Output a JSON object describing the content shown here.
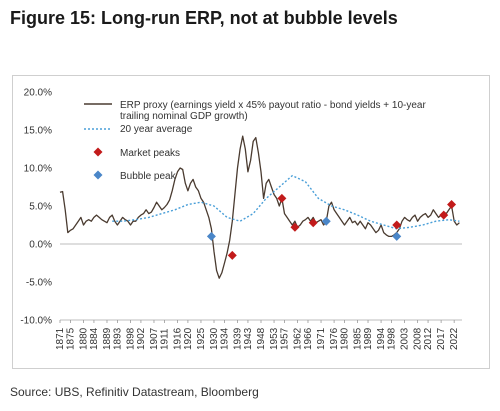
{
  "figure": {
    "title": "Figure 15: Long-run ERP, not at bubble levels",
    "source": "Source: UBS, Refinitiv Datastream, Bloomberg"
  },
  "chart_data": {
    "type": "line",
    "ylim": [
      -10,
      20
    ],
    "xlim": [
      1871,
      2025
    ],
    "y_ticks": [
      20,
      15,
      10,
      5,
      0,
      -5,
      -10
    ],
    "y_tick_labels": [
      "20.0%",
      "15.0%",
      "10.0%",
      "5.0%",
      "0.0%",
      "-5.0%",
      "-10.0%"
    ],
    "x_ticks": [
      "1871",
      "1875",
      "1880",
      "1884",
      "1889",
      "1893",
      "1898",
      "1902",
      "1907",
      "1911",
      "1916",
      "1920",
      "1925",
      "1930",
      "1934",
      "1939",
      "1943",
      "1948",
      "1953",
      "1957",
      "1962",
      "1966",
      "1971",
      "1976",
      "1980",
      "1985",
      "1989",
      "1994",
      "1998",
      "2003",
      "2008",
      "2012",
      "2017",
      "2022"
    ],
    "grid": false,
    "legend_position": "top",
    "series": [
      {
        "name": "ERP proxy (earnings yield x 45% payout ratio - bond yields + 10-year trailing nominal GDP growth)",
        "style": "line",
        "color": "#4a3b30",
        "x": [
          1871,
          1872,
          1873,
          1874,
          1875,
          1876,
          1877,
          1878,
          1879,
          1880,
          1881,
          1882,
          1883,
          1884,
          1885,
          1886,
          1887,
          1888,
          1889,
          1890,
          1891,
          1892,
          1893,
          1894,
          1895,
          1896,
          1897,
          1898,
          1899,
          1900,
          1901,
          1902,
          1903,
          1904,
          1905,
          1906,
          1907,
          1908,
          1909,
          1910,
          1911,
          1912,
          1913,
          1914,
          1915,
          1916,
          1917,
          1918,
          1919,
          1920,
          1921,
          1922,
          1923,
          1924,
          1925,
          1926,
          1927,
          1928,
          1929,
          1930,
          1931,
          1932,
          1933,
          1934,
          1935,
          1936,
          1937,
          1938,
          1939,
          1940,
          1941,
          1942,
          1943,
          1944,
          1945,
          1946,
          1947,
          1948,
          1949,
          1950,
          1951,
          1952,
          1953,
          1954,
          1955,
          1956,
          1957,
          1958,
          1959,
          1960,
          1961,
          1962,
          1963,
          1964,
          1965,
          1966,
          1967,
          1968,
          1969,
          1970,
          1971,
          1972,
          1973,
          1974,
          1975,
          1976,
          1977,
          1978,
          1979,
          1980,
          1981,
          1982,
          1983,
          1984,
          1985,
          1986,
          1987,
          1988,
          1989,
          1990,
          1991,
          1992,
          1993,
          1994,
          1995,
          1996,
          1997,
          1998,
          1999,
          2000,
          2001,
          2002,
          2003,
          2004,
          2005,
          2006,
          2007,
          2008,
          2009,
          2010,
          2011,
          2012,
          2013,
          2014,
          2015,
          2016,
          2017,
          2018,
          2019,
          2020,
          2021,
          2022,
          2023,
          2024
        ],
        "y": [
          6.8,
          6.9,
          4.5,
          1.5,
          1.8,
          2.0,
          2.5,
          3.0,
          3.5,
          2.5,
          3.0,
          3.2,
          3.0,
          3.5,
          3.8,
          3.5,
          3.2,
          3.0,
          2.8,
          3.5,
          3.8,
          3.0,
          2.5,
          3.0,
          3.5,
          3.2,
          3.0,
          2.5,
          3.0,
          3.0,
          3.5,
          3.8,
          4.0,
          4.5,
          4.0,
          4.2,
          4.8,
          5.5,
          5.0,
          4.5,
          4.8,
          5.2,
          5.8,
          7.0,
          8.5,
          9.5,
          10.0,
          9.8,
          8.0,
          7.0,
          8.0,
          8.5,
          7.5,
          7.0,
          6.0,
          5.5,
          4.5,
          3.5,
          2.0,
          -1.0,
          -3.5,
          -4.5,
          -3.8,
          -2.5,
          -1.2,
          0.5,
          3.0,
          6.5,
          10.0,
          12.5,
          14.2,
          12.5,
          9.5,
          11.0,
          13.5,
          14.0,
          12.0,
          9.5,
          6.0,
          8.0,
          8.5,
          7.5,
          6.5,
          6.0,
          5.0,
          6.0,
          4.0,
          3.5,
          3.0,
          2.5,
          3.0,
          2.2,
          2.5,
          3.0,
          3.2,
          3.5,
          3.0,
          3.5,
          2.8,
          3.0,
          3.2,
          2.5,
          3.0,
          5.0,
          5.5,
          4.5,
          4.0,
          3.5,
          3.0,
          2.5,
          3.0,
          3.5,
          2.8,
          3.0,
          2.5,
          3.0,
          2.5,
          2.0,
          2.8,
          2.5,
          2.0,
          1.5,
          1.8,
          2.5,
          1.5,
          1.2,
          1.0,
          1.0,
          1.2,
          1.5,
          2.0,
          3.0,
          3.5,
          3.2,
          3.0,
          3.5,
          3.8,
          3.0,
          3.5,
          3.8,
          4.0,
          3.5,
          3.8,
          4.5,
          4.0,
          3.5,
          3.8,
          4.2,
          4.0,
          4.5,
          5.0,
          3.0,
          2.5,
          2.8
        ]
      },
      {
        "name": "20 year average",
        "style": "dotted",
        "color": "#4a9fd8",
        "x": [
          1891,
          1895,
          1900,
          1905,
          1910,
          1915,
          1920,
          1925,
          1930,
          1935,
          1940,
          1945,
          1950,
          1955,
          1960,
          1965,
          1970,
          1975,
          1980,
          1985,
          1990,
          1995,
          2000,
          2005,
          2010,
          2015,
          2020,
          2024
        ],
        "y": [
          3.0,
          3.0,
          3.2,
          3.5,
          4.0,
          4.5,
          5.2,
          5.5,
          5.0,
          3.5,
          3.0,
          4.0,
          6.0,
          7.5,
          9.0,
          8.2,
          6.0,
          5.0,
          4.5,
          3.8,
          3.0,
          2.5,
          2.0,
          2.2,
          2.5,
          3.0,
          3.2,
          3.0
        ]
      },
      {
        "name": "Market peaks",
        "style": "marker",
        "marker": "diamond",
        "color": "#c21b1b",
        "x": [
          1937,
          1956,
          1961,
          1968,
          2000,
          2018,
          2021
        ],
        "y": [
          -1.5,
          6.0,
          2.2,
          2.8,
          2.5,
          3.8,
          5.2
        ]
      },
      {
        "name": "Bubble peak",
        "style": "marker",
        "marker": "diamond",
        "color": "#4a86c8",
        "x": [
          1929,
          1973,
          2000
        ],
        "y": [
          1.0,
          3.0,
          1.0
        ]
      }
    ]
  }
}
